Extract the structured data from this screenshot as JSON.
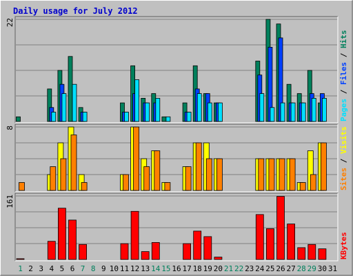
{
  "title": "Daily usage for July 2012",
  "colors": {
    "background": "#c0c0c0",
    "title": "#0000cc",
    "hits": "#00805c",
    "files": "#0040ff",
    "pages": "#00e0ff",
    "visits": "#ffff00",
    "sites": "#ff8000",
    "kbytes": "#ff0000",
    "weekday": "#000000",
    "weekend": "#00805c"
  },
  "chart_data": [
    {
      "type": "bar",
      "panel": "hits-files-pages",
      "legend": [
        "Pages",
        "Files",
        "Hits"
      ],
      "ymax_label": "22",
      "ylim": [
        0,
        22
      ],
      "grid": true,
      "categories": [
        "1",
        "2",
        "3",
        "4",
        "5",
        "6",
        "7",
        "8",
        "9",
        "10",
        "11",
        "12",
        "13",
        "14",
        "15",
        "16",
        "17",
        "18",
        "19",
        "20",
        "21",
        "22",
        "23",
        "24",
        "25",
        "26",
        "27",
        "28",
        "29",
        "30",
        "31"
      ],
      "weekend_days": [
        "1",
        "7",
        "8",
        "14",
        "15",
        "21",
        "22",
        "28",
        "29"
      ],
      "series": [
        {
          "name": "Hits",
          "values": [
            1,
            0,
            0,
            7,
            11,
            14,
            3,
            0,
            0,
            0,
            4,
            12,
            5,
            6,
            1,
            0,
            4,
            12,
            6,
            4,
            0,
            0,
            0,
            13,
            22,
            21,
            8,
            6,
            11,
            4,
            0
          ]
        },
        {
          "name": "Files",
          "values": [
            0,
            0,
            0,
            3,
            8,
            0,
            2,
            0,
            0,
            0,
            2,
            6,
            4,
            4,
            0,
            0,
            2,
            7,
            6,
            4,
            0,
            0,
            0,
            10,
            16,
            18,
            4,
            4,
            6,
            6,
            0
          ]
        },
        {
          "name": "Pages",
          "values": [
            0,
            0,
            0,
            2,
            6,
            8,
            2,
            0,
            0,
            0,
            2,
            9,
            4,
            5,
            1,
            0,
            2,
            6,
            4,
            4,
            0,
            0,
            0,
            6,
            3,
            4,
            4,
            4,
            5,
            5,
            0
          ]
        }
      ]
    },
    {
      "type": "bar",
      "panel": "visits-sites",
      "legend": [
        "Sites",
        "Visits"
      ],
      "ymax_label": "8",
      "ylim": [
        0,
        8
      ],
      "grid": true,
      "categories": [
        "1",
        "2",
        "3",
        "4",
        "5",
        "6",
        "7",
        "8",
        "9",
        "10",
        "11",
        "12",
        "13",
        "14",
        "15",
        "16",
        "17",
        "18",
        "19",
        "20",
        "21",
        "22",
        "23",
        "24",
        "25",
        "26",
        "27",
        "28",
        "29",
        "30",
        "31"
      ],
      "series": [
        {
          "name": "Visits",
          "values": [
            0,
            0,
            0,
            2,
            6,
            8,
            2,
            0,
            0,
            0,
            2,
            8,
            4,
            5,
            1,
            0,
            3,
            6,
            6,
            4,
            0,
            0,
            0,
            4,
            4,
            4,
            4,
            1,
            5,
            6,
            0
          ]
        },
        {
          "name": "Sites",
          "values": [
            1,
            0,
            0,
            3,
            4,
            7,
            1,
            0,
            0,
            0,
            2,
            8,
            3,
            5,
            1,
            0,
            3,
            6,
            4,
            4,
            0,
            0,
            0,
            4,
            4,
            4,
            4,
            1,
            2,
            6,
            0
          ]
        }
      ]
    },
    {
      "type": "bar",
      "panel": "kbytes",
      "legend": [
        "KBytes"
      ],
      "ymax_label": "161",
      "ylim": [
        0,
        161
      ],
      "grid": true,
      "categories": [
        "1",
        "2",
        "3",
        "4",
        "5",
        "6",
        "7",
        "8",
        "9",
        "10",
        "11",
        "12",
        "13",
        "14",
        "15",
        "16",
        "17",
        "18",
        "19",
        "20",
        "21",
        "22",
        "23",
        "24",
        "25",
        "26",
        "27",
        "28",
        "29",
        "30",
        "31"
      ],
      "series": [
        {
          "name": "KBytes",
          "values": [
            2,
            0,
            0,
            46,
            130,
            100,
            38,
            0,
            0,
            0,
            40,
            122,
            20,
            43,
            0,
            0,
            40,
            72,
            58,
            6,
            0,
            0,
            0,
            114,
            78,
            160,
            90,
            30,
            38,
            27,
            0
          ]
        }
      ]
    }
  ]
}
